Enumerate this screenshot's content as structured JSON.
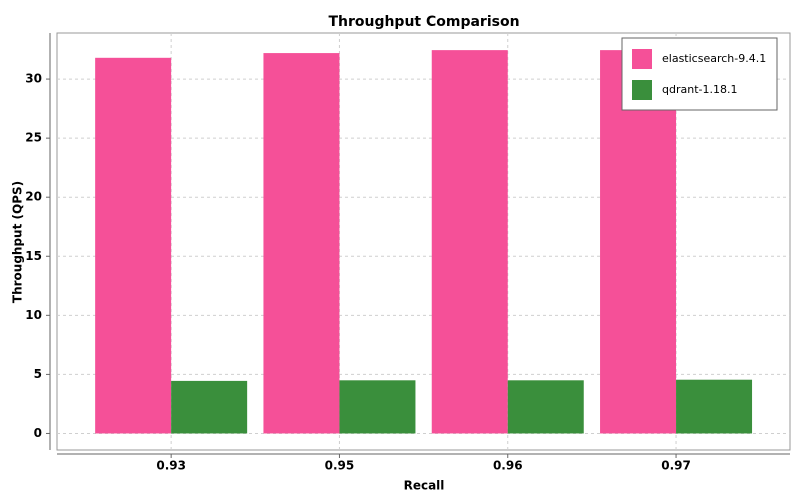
{
  "chart_data": {
    "type": "bar",
    "title": "Throughput Comparison",
    "x_label": "Recall",
    "y_label": "Throughput (QPS)",
    "categories": [
      "0.93",
      "0.95",
      "0.96",
      "0.97"
    ],
    "series": [
      {
        "name": "elasticsearch-9.4.1",
        "color": "#f55098",
        "values": [
          31.8,
          32.2,
          32.45,
          32.45
        ]
      },
      {
        "name": "qdrant-1.18.1",
        "color": "#3a8f3c",
        "values": [
          4.45,
          4.5,
          4.5,
          4.55
        ]
      }
    ],
    "ylim": [
      -1.4,
      33.9
    ],
    "yticks": [
      0,
      5,
      10,
      15,
      20,
      25,
      30
    ],
    "grid": true,
    "legend": "top-right"
  }
}
